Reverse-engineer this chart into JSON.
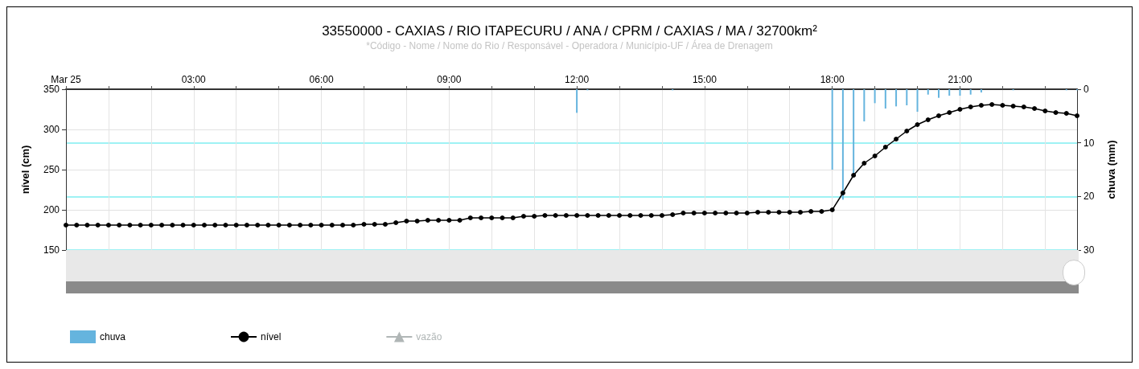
{
  "chart_data": {
    "type": "line",
    "title": "33550000 - CAXIAS / RIO ITAPECURU / ANA / CPRM / CAXIAS / MA / 32700km²",
    "subtitle": "*Código - Nome / Nome do Rio / Responsável - Operadora / Município-UF / Área de Drenagem",
    "ylabel": "nível (cm)",
    "y2label": "chuva (mm)",
    "xlim": [
      0,
      23.75
    ],
    "xticks": [
      {
        "value": 0,
        "label": "Mar 25"
      },
      {
        "value": 1,
        "label": null
      },
      {
        "value": 2,
        "label": null
      },
      {
        "value": 3,
        "label": "03:00"
      },
      {
        "value": 4,
        "label": null
      },
      {
        "value": 5,
        "label": null
      },
      {
        "value": 6,
        "label": "06:00"
      },
      {
        "value": 7,
        "label": null
      },
      {
        "value": 8,
        "label": null
      },
      {
        "value": 9,
        "label": "09:00"
      },
      {
        "value": 10,
        "label": null
      },
      {
        "value": 11,
        "label": null
      },
      {
        "value": 12,
        "label": "12:00"
      },
      {
        "value": 13,
        "label": null
      },
      {
        "value": 14,
        "label": null
      },
      {
        "value": 15,
        "label": "15:00"
      },
      {
        "value": 16,
        "label": null
      },
      {
        "value": 17,
        "label": null
      },
      {
        "value": 18,
        "label": "18:00"
      },
      {
        "value": 19,
        "label": null
      },
      {
        "value": 20,
        "label": null
      },
      {
        "value": 21,
        "label": "21:00"
      },
      {
        "value": 22,
        "label": null
      },
      {
        "value": 23,
        "label": null
      }
    ],
    "ylim": [
      150,
      350
    ],
    "yticks": [
      150,
      200,
      250,
      300,
      350
    ],
    "y2lim": [
      30,
      0
    ],
    "y2ticks": [
      0,
      10,
      20,
      30
    ],
    "grid": true,
    "legend": "bottom left",
    "series": [
      {
        "name": "chuva",
        "type": "bar",
        "axis": "y2",
        "color": "#65b4de",
        "x": [
          12,
          12.25,
          14.25,
          18,
          18.25,
          18.5,
          18.75,
          19,
          19.25,
          19.5,
          19.75,
          20,
          20.25,
          20.5,
          20.75,
          21,
          21.25,
          21.5,
          22.25,
          23.5,
          23.75
        ],
        "values": [
          4.4,
          0.2,
          0.2,
          15.0,
          20.6,
          15.8,
          6.0,
          2.6,
          3.6,
          3.2,
          3.0,
          4.2,
          1.0,
          1.6,
          1.2,
          1.2,
          1.0,
          0.6,
          0.2,
          0.2,
          0.2
        ]
      },
      {
        "name": "nível",
        "color": "#000000",
        "marker": "circle",
        "x": [
          0,
          0.25,
          0.5,
          0.75,
          1,
          1.25,
          1.5,
          1.75,
          2,
          2.25,
          2.5,
          2.75,
          3,
          3.25,
          3.5,
          3.75,
          4,
          4.25,
          4.5,
          4.75,
          5,
          5.25,
          5.5,
          5.75,
          6,
          6.25,
          6.5,
          6.75,
          7,
          7.25,
          7.5,
          7.75,
          8,
          8.25,
          8.5,
          8.75,
          9,
          9.25,
          9.5,
          9.75,
          10,
          10.25,
          10.5,
          10.75,
          11,
          11.25,
          11.5,
          11.75,
          12,
          12.25,
          12.5,
          12.75,
          13,
          13.25,
          13.5,
          13.75,
          14,
          14.25,
          14.5,
          14.75,
          15,
          15.25,
          15.5,
          15.75,
          16,
          16.25,
          16.5,
          16.75,
          17,
          17.25,
          17.5,
          17.75,
          18,
          18.25,
          18.5,
          18.75,
          19,
          19.25,
          19.5,
          19.75,
          20,
          20.25,
          20.5,
          20.75,
          21,
          21.25,
          21.5,
          21.75,
          22,
          22.25,
          22.5,
          22.75,
          23,
          23.25,
          23.5,
          23.75
        ],
        "values": [
          181,
          181,
          181,
          181,
          181,
          181,
          181,
          181,
          181,
          181,
          181,
          181,
          181,
          181,
          181,
          181,
          181,
          181,
          181,
          181,
          181,
          181,
          181,
          181,
          181,
          181,
          181,
          181,
          182,
          182,
          182,
          184,
          186,
          186,
          187,
          187,
          187,
          187,
          190,
          190,
          190,
          190,
          190,
          192,
          192,
          193,
          193,
          193,
          193,
          193,
          193,
          193,
          193,
          193,
          193,
          193,
          193,
          194,
          196,
          196,
          196,
          196,
          196,
          196,
          196,
          197,
          197,
          197,
          197,
          197,
          198,
          198,
          200,
          221,
          243,
          258,
          267,
          278,
          288,
          298,
          306,
          312,
          317,
          321,
          325,
          328,
          330,
          331,
          330,
          329,
          328,
          326,
          323,
          321,
          320,
          317
        ]
      },
      {
        "name": "vazão",
        "type": "line",
        "marker": "triangle",
        "color": "#b0b6b6"
      }
    ]
  }
}
